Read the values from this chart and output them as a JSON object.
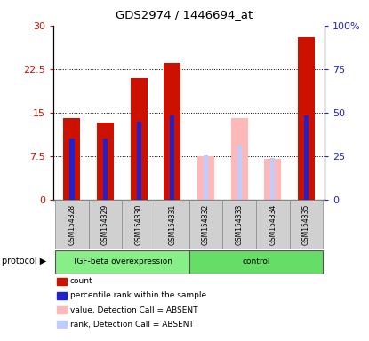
{
  "title": "GDS2974 / 1446694_at",
  "samples": [
    "GSM154328",
    "GSM154329",
    "GSM154330",
    "GSM154331",
    "GSM154332",
    "GSM154333",
    "GSM154334",
    "GSM154335"
  ],
  "count_values": [
    14.0,
    13.2,
    21.0,
    23.5,
    0,
    0,
    0,
    28.0
  ],
  "rank_values": [
    10.5,
    10.5,
    13.5,
    14.5,
    0,
    0,
    0,
    14.5
  ],
  "absent_value_values": [
    0,
    0,
    0,
    0,
    7.5,
    14.0,
    7.0,
    0
  ],
  "absent_rank_values": [
    0,
    0,
    0,
    0,
    7.8,
    9.5,
    7.2,
    0
  ],
  "present": [
    true,
    true,
    true,
    true,
    false,
    false,
    false,
    true
  ],
  "ylim_left": [
    0,
    30
  ],
  "ylim_right": [
    0,
    100
  ],
  "yticks_left": [
    0,
    7.5,
    15,
    22.5,
    30
  ],
  "yticks_right": [
    0,
    25,
    50,
    75,
    100
  ],
  "ytick_labels_left": [
    "0",
    "7.5",
    "15",
    "22.5",
    "30"
  ],
  "ytick_labels_right": [
    "0",
    "25",
    "50",
    "75",
    "100%"
  ],
  "color_count": "#cc1100",
  "color_rank": "#2222cc",
  "color_absent_value": "#ffb8b8",
  "color_absent_rank": "#c0ccff",
  "group_colors": {
    "TGF-beta overexpression": "#88ee88",
    "control": "#66dd66"
  },
  "bar_width": 0.5,
  "legend_items": [
    {
      "label": "count",
      "color": "#cc1100"
    },
    {
      "label": "percentile rank within the sample",
      "color": "#2222cc"
    },
    {
      "label": "value, Detection Call = ABSENT",
      "color": "#ffb8b8"
    },
    {
      "label": "rank, Detection Call = ABSENT",
      "color": "#c0ccff"
    }
  ],
  "protocol_label": "protocol"
}
